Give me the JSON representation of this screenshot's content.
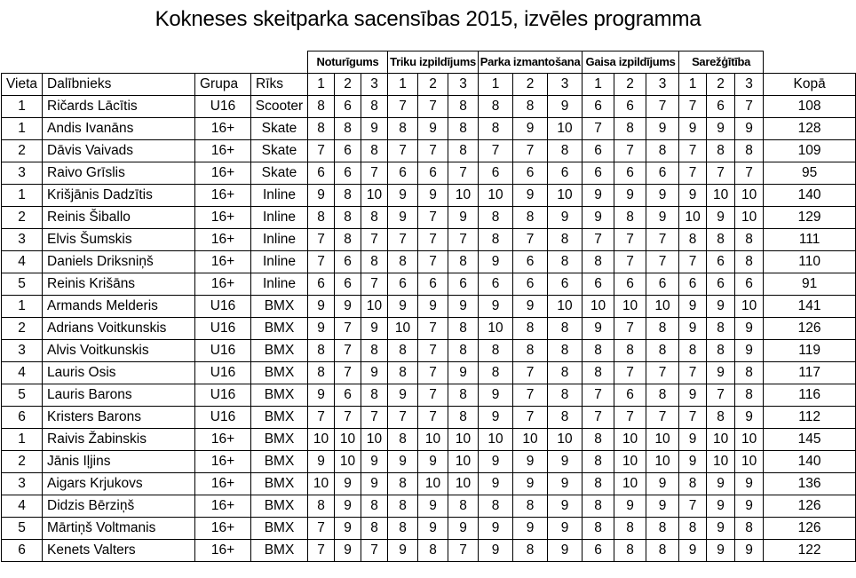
{
  "title": "Kokneses skeitparka sacensības 2015, izvēles programma",
  "table": {
    "columns": {
      "vieta": "Vieta",
      "dalibnieks": "Dalībnieks",
      "grupa": "Grupa",
      "riks": "Rīks",
      "kopa": "Kopā"
    },
    "groups": [
      {
        "label": "Noturīgums",
        "subs": [
          "1",
          "2",
          "3"
        ]
      },
      {
        "label": "Triku izpildījums",
        "subs": [
          "1",
          "2",
          "3"
        ]
      },
      {
        "label": "Parka izmantošana",
        "subs": [
          "1",
          "2",
          "3"
        ]
      },
      {
        "label": "Gaisa izpildījums",
        "subs": [
          "1",
          "2",
          "3"
        ]
      },
      {
        "label": "Sarežģītība",
        "subs": [
          "1",
          "2",
          "3"
        ]
      }
    ],
    "rows": [
      {
        "vieta": "1",
        "name": "Ričards Lācītis",
        "grupa": "U16",
        "riks": "Scooter",
        "scores": [
          8,
          6,
          8,
          7,
          7,
          8,
          8,
          8,
          9,
          6,
          6,
          7,
          7,
          6,
          7
        ],
        "total": 108
      },
      {
        "vieta": "1",
        "name": "Andis Ivanāns",
        "grupa": "16+",
        "riks": "Skate",
        "scores": [
          8,
          8,
          9,
          8,
          9,
          8,
          8,
          9,
          10,
          7,
          8,
          9,
          9,
          9,
          9
        ],
        "total": 128
      },
      {
        "vieta": "2",
        "name": "Dāvis Vaivads",
        "grupa": "16+",
        "riks": "Skate",
        "scores": [
          7,
          6,
          8,
          7,
          7,
          8,
          7,
          7,
          8,
          6,
          7,
          8,
          7,
          8,
          8
        ],
        "total": 109
      },
      {
        "vieta": "3",
        "name": "Raivo Grīslis",
        "grupa": "16+",
        "riks": "Skate",
        "scores": [
          6,
          6,
          7,
          6,
          6,
          7,
          6,
          6,
          6,
          6,
          6,
          6,
          7,
          7,
          7
        ],
        "total": 95
      },
      {
        "vieta": "1",
        "name": "Krišjānis Dadzītis",
        "grupa": "16+",
        "riks": "Inline",
        "scores": [
          9,
          8,
          10,
          9,
          9,
          10,
          10,
          9,
          10,
          9,
          9,
          9,
          9,
          10,
          10
        ],
        "total": 140
      },
      {
        "vieta": "2",
        "name": "Reinis Šiballo",
        "grupa": "16+",
        "riks": "Inline",
        "scores": [
          8,
          8,
          8,
          9,
          7,
          9,
          8,
          8,
          9,
          9,
          8,
          9,
          10,
          9,
          10
        ],
        "total": 129
      },
      {
        "vieta": "3",
        "name": "Elvis Šumskis",
        "grupa": "16+",
        "riks": "Inline",
        "scores": [
          7,
          8,
          7,
          7,
          7,
          7,
          8,
          7,
          8,
          7,
          7,
          7,
          8,
          8,
          8
        ],
        "total": 111
      },
      {
        "vieta": "4",
        "name": "Daniels Driksniņš",
        "grupa": "16+",
        "riks": "Inline",
        "scores": [
          7,
          6,
          8,
          8,
          7,
          8,
          9,
          6,
          8,
          8,
          7,
          7,
          7,
          6,
          8
        ],
        "total": 110
      },
      {
        "vieta": "5",
        "name": "Reinis Krišāns",
        "grupa": "16+",
        "riks": "Inline",
        "scores": [
          6,
          6,
          7,
          6,
          6,
          6,
          6,
          6,
          6,
          6,
          6,
          6,
          6,
          6,
          6
        ],
        "total": 91
      },
      {
        "vieta": "1",
        "name": "Armands Melderis",
        "grupa": "U16",
        "riks": "BMX",
        "scores": [
          9,
          9,
          10,
          9,
          9,
          9,
          9,
          9,
          10,
          10,
          10,
          10,
          9,
          9,
          10
        ],
        "total": 141
      },
      {
        "vieta": "2",
        "name": "Adrians Voitkunskis",
        "grupa": "U16",
        "riks": "BMX",
        "scores": [
          9,
          7,
          9,
          10,
          7,
          8,
          10,
          8,
          8,
          9,
          7,
          8,
          9,
          8,
          9
        ],
        "total": 126
      },
      {
        "vieta": "3",
        "name": "Alvis Voitkunskis",
        "grupa": "U16",
        "riks": "BMX",
        "scores": [
          8,
          7,
          8,
          8,
          7,
          8,
          8,
          8,
          8,
          8,
          8,
          8,
          8,
          8,
          9
        ],
        "total": 119
      },
      {
        "vieta": "4",
        "name": "Lauris Osis",
        "grupa": "U16",
        "riks": "BMX",
        "scores": [
          8,
          7,
          9,
          8,
          7,
          9,
          8,
          7,
          8,
          8,
          7,
          7,
          7,
          9,
          8
        ],
        "total": 117
      },
      {
        "vieta": "5",
        "name": "Lauris Barons",
        "grupa": "U16",
        "riks": "BMX",
        "scores": [
          9,
          6,
          8,
          9,
          7,
          8,
          9,
          7,
          8,
          7,
          6,
          8,
          9,
          7,
          8
        ],
        "total": 116
      },
      {
        "vieta": "6",
        "name": "Kristers Barons",
        "grupa": "U16",
        "riks": "BMX",
        "scores": [
          7,
          7,
          7,
          7,
          7,
          8,
          9,
          7,
          8,
          7,
          7,
          7,
          7,
          8,
          9
        ],
        "total": 112
      },
      {
        "vieta": "1",
        "name": "Raivis Žabinskis",
        "grupa": "16+",
        "riks": "BMX",
        "scores": [
          10,
          10,
          10,
          8,
          10,
          10,
          10,
          10,
          10,
          8,
          10,
          10,
          9,
          10,
          10
        ],
        "total": 145
      },
      {
        "vieta": "2",
        "name": "Jānis Iļjins",
        "grupa": "16+",
        "riks": "BMX",
        "scores": [
          9,
          10,
          9,
          9,
          9,
          10,
          9,
          9,
          9,
          8,
          10,
          10,
          9,
          10,
          10
        ],
        "total": 140
      },
      {
        "vieta": "3",
        "name": "Aigars Krjukovs",
        "grupa": "16+",
        "riks": "BMX",
        "scores": [
          10,
          9,
          9,
          8,
          10,
          10,
          9,
          9,
          9,
          8,
          10,
          9,
          8,
          9,
          9
        ],
        "total": 136
      },
      {
        "vieta": "4",
        "name": "Didzis Bērziņš",
        "grupa": "16+",
        "riks": "BMX",
        "scores": [
          8,
          9,
          8,
          8,
          9,
          8,
          8,
          8,
          9,
          8,
          9,
          9,
          7,
          9,
          9
        ],
        "total": 126
      },
      {
        "vieta": "5",
        "name": "Mārtiņš Voltmanis",
        "grupa": "16+",
        "riks": "BMX",
        "scores": [
          7,
          9,
          8,
          8,
          9,
          9,
          9,
          9,
          9,
          8,
          8,
          8,
          8,
          9,
          8
        ],
        "total": 126
      },
      {
        "vieta": "6",
        "name": "Kenets Valters",
        "grupa": "16+",
        "riks": "BMX",
        "scores": [
          7,
          9,
          7,
          9,
          8,
          7,
          9,
          8,
          9,
          6,
          8,
          8,
          9,
          9,
          9
        ],
        "total": 122
      }
    ]
  }
}
